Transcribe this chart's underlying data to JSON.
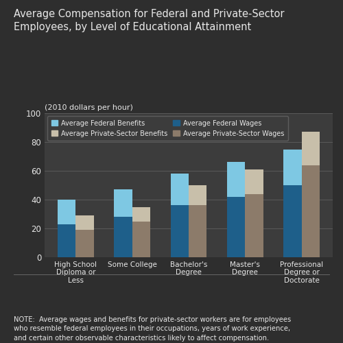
{
  "title": "Average Compensation for Federal and Private-Sector\nEmployees, by Level of Educational Attainment",
  "subtitle": "(2010 dollars per hour)",
  "note": "NOTE:  Average wages and benefits for private-sector workers are for employees\nwho resemble federal employees in their occupations, years of work experience,\nand certain other observable characteristics likely to affect compensation.",
  "categories": [
    "High School\nDiploma or\nLess",
    "Some College",
    "Bachelor's\nDegree",
    "Master's\nDegree",
    "Professional\nDegree or\nDoctorate"
  ],
  "federal_wages": [
    23,
    28,
    36,
    42,
    50
  ],
  "federal_benefits": [
    17,
    19,
    22,
    24,
    25
  ],
  "private_wages": [
    19,
    25,
    36,
    44,
    64
  ],
  "private_benefits": [
    10,
    10,
    14,
    17,
    23
  ],
  "ylim": [
    0,
    100
  ],
  "yticks": [
    0,
    20,
    40,
    60,
    80,
    100
  ],
  "bg_color": "#2e2e2e",
  "plot_bg_color": "#3c3c3c",
  "text_color": "#e8e8e8",
  "federal_wages_color": "#1e5f8a",
  "federal_benefits_color": "#7ec8e3",
  "private_wages_color": "#8c7b6a",
  "private_benefits_color": "#c8bfaa",
  "bar_width": 0.32,
  "legend_labels": [
    "Average Federal Benefits",
    "Average Private-Sector Benefits",
    "Average Federal Wages",
    "Average Private-Sector Wages"
  ]
}
